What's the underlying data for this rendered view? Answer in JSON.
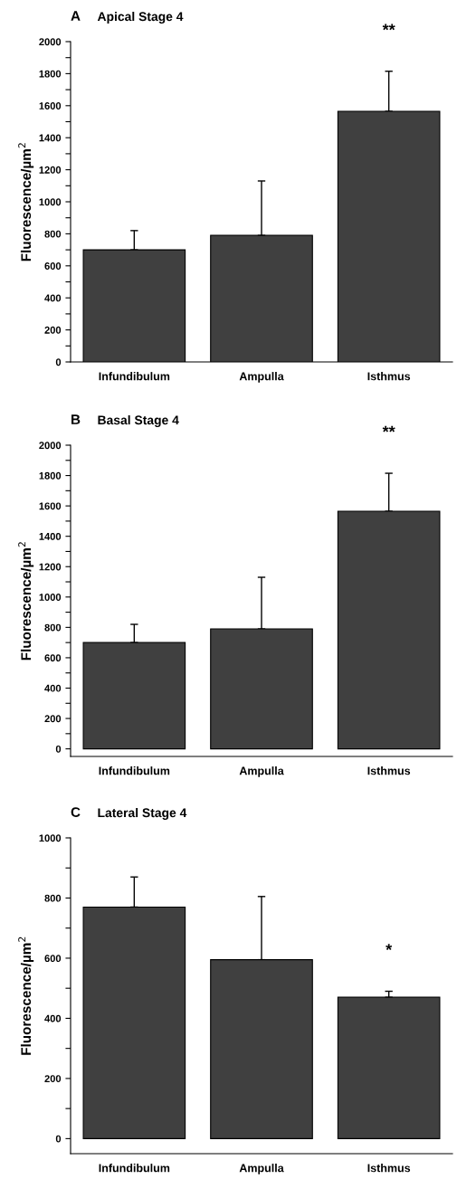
{
  "chart_data": [
    {
      "type": "bar",
      "title": "Apical Stage 4",
      "ylabel": "Fluorescence/µm$^{2}$",
      "categories": [
        "Infundibulum",
        "Ampulla",
        "Isthmus"
      ],
      "values": [
        700,
        790,
        1565
      ],
      "errors": [
        [
          700,
          820
        ],
        [
          790,
          1130
        ],
        [
          1565,
          1815
        ]
      ],
      "color": "#404040",
      "ylim": [
        0,
        2000
      ],
      "yticks": [
        0,
        {
          "value": 100,
          "label": null
        },
        200,
        {
          "value": 300,
          "label": null
        },
        400,
        {
          "value": 500,
          "label": null
        },
        600,
        {
          "value": 700,
          "label": null
        },
        800,
        {
          "value": 900,
          "label": null
        },
        1000,
        {
          "value": 1100,
          "label": null
        },
        1200,
        {
          "value": 1300,
          "label": null
        },
        1400,
        {
          "value": 1500,
          "label": null
        },
        1600,
        {
          "value": 1700,
          "label": null
        },
        1800,
        {
          "value": 1900,
          "label": null
        },
        2000
      ],
      "annotations": [
        "A",
        "**"
      ],
      "grid": false,
      "legend": false
    },
    {
      "type": "bar",
      "title": "Basal Stage 4",
      "ylabel": "Fluorescence/µm$^{2}$",
      "categories": [
        "Infundibulum",
        "Ampulla",
        "Isthmus"
      ],
      "values": [
        700,
        790,
        1565
      ],
      "errors": [
        [
          700,
          820
        ],
        [
          790,
          1130
        ],
        [
          1565,
          1815
        ]
      ],
      "color": "#404040",
      "ylim": [
        -50,
        2000
      ],
      "yticks": [
        0,
        {
          "value": 100,
          "label": null
        },
        200,
        {
          "value": 300,
          "label": null
        },
        400,
        {
          "value": 500,
          "label": null
        },
        600,
        {
          "value": 700,
          "label": null
        },
        800,
        {
          "value": 900,
          "label": null
        },
        1000,
        {
          "value": 1100,
          "label": null
        },
        1200,
        {
          "value": 1300,
          "label": null
        },
        1400,
        {
          "value": 1500,
          "label": null
        },
        1600,
        {
          "value": 1700,
          "label": null
        },
        1800,
        {
          "value": 1900,
          "label": null
        },
        2000
      ],
      "annotations": [
        "B",
        "**"
      ],
      "grid": false,
      "legend": false
    },
    {
      "type": "bar",
      "title": "Lateral Stage 4",
      "ylabel": "Fluorescence/µm$^{2}$",
      "categories": [
        "Infundibulum",
        "Ampulla",
        "Isthmus"
      ],
      "values": [
        770,
        595,
        470
      ],
      "errors": [
        [
          770,
          870
        ],
        [
          595,
          805
        ],
        [
          470,
          490
        ]
      ],
      "color": "#404040",
      "ylim": [
        -50,
        1000
      ],
      "yticks": [
        0,
        {
          "value": 100,
          "label": null
        },
        200,
        {
          "value": 300,
          "label": null
        },
        400,
        {
          "value": 500,
          "label": null
        },
        600,
        {
          "value": 700,
          "label": null
        },
        800,
        {
          "value": 900,
          "label": null
        },
        1000
      ],
      "annotations": [
        "C",
        "*"
      ],
      "grid": false,
      "legend": false
    }
  ]
}
